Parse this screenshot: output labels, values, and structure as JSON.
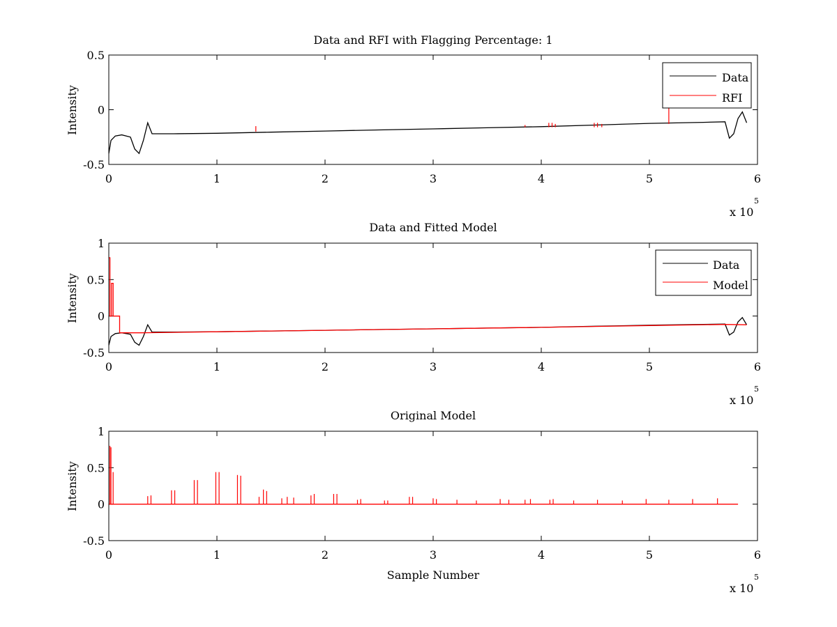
{
  "colors": {
    "data": "#000000",
    "rfi": "#ff0000",
    "axes": "#000000",
    "background": "#ffffff",
    "legend_border": "#000000"
  },
  "chart_data": [
    {
      "type": "line",
      "title": "Data and RFI with Flagging Percentage: 1",
      "xlabel": "",
      "ylabel": "Intensity",
      "xlim": [
        0,
        600000
      ],
      "ylim": [
        -0.5,
        0.5
      ],
      "x_ticks": [
        0,
        1,
        2,
        3,
        4,
        5,
        6
      ],
      "y_ticks": [
        "-0.5",
        "0",
        "0.5"
      ],
      "x_exponent_label": "x 10",
      "x_exponent": "5",
      "legend": {
        "position": "top-right",
        "entries": [
          "Data",
          "RFI"
        ]
      },
      "series": [
        {
          "name": "Data",
          "color": "#000000",
          "x": [
            0,
            2000,
            6000,
            12000,
            20000,
            24000,
            28000,
            32000,
            36000,
            40000,
            60000,
            100000,
            150000,
            200000,
            250000,
            300000,
            350000,
            400000,
            450000,
            500000,
            550000,
            570000,
            574000,
            578000,
            582000,
            586000,
            590000
          ],
          "y": [
            -0.4,
            -0.28,
            -0.24,
            -0.23,
            -0.25,
            -0.36,
            -0.4,
            -0.28,
            -0.12,
            -0.22,
            -0.22,
            -0.215,
            -0.205,
            -0.195,
            -0.185,
            -0.175,
            -0.165,
            -0.155,
            -0.14,
            -0.125,
            -0.115,
            -0.11,
            -0.26,
            -0.22,
            -0.08,
            -0.02,
            -0.12
          ]
        },
        {
          "name": "RFI",
          "color": "#ff0000",
          "spikes": [
            {
              "x": 136000,
              "base": -0.2,
              "height": -0.15
            },
            {
              "x": 385000,
              "base": -0.16,
              "height": -0.14
            },
            {
              "x": 407000,
              "base": -0.16,
              "height": -0.12
            },
            {
              "x": 410000,
              "base": -0.16,
              "height": -0.12
            },
            {
              "x": 413000,
              "base": -0.16,
              "height": -0.13
            },
            {
              "x": 449000,
              "base": -0.16,
              "height": -0.12
            },
            {
              "x": 452000,
              "base": -0.16,
              "height": -0.12
            },
            {
              "x": 456000,
              "base": -0.16,
              "height": -0.13
            },
            {
              "x": 518000,
              "base": -0.13,
              "height": 0.02
            }
          ]
        }
      ]
    },
    {
      "type": "line",
      "title": "Data and Fitted Model",
      "xlabel": "",
      "ylabel": "Intensity",
      "xlim": [
        0,
        600000
      ],
      "ylim": [
        -0.5,
        1
      ],
      "x_ticks": [
        0,
        1,
        2,
        3,
        4,
        5,
        6
      ],
      "y_ticks": [
        "-0.5",
        "0",
        "0.5",
        "1"
      ],
      "x_exponent_label": "x 10",
      "x_exponent": "5",
      "legend": {
        "position": "top-right",
        "entries": [
          "Data",
          "Model"
        ]
      },
      "series": [
        {
          "name": "Data",
          "color": "#000000",
          "x": [
            0,
            2000,
            6000,
            12000,
            20000,
            24000,
            28000,
            32000,
            36000,
            40000,
            60000,
            100000,
            150000,
            200000,
            250000,
            300000,
            350000,
            400000,
            450000,
            500000,
            550000,
            570000,
            574000,
            578000,
            582000,
            586000,
            590000
          ],
          "y": [
            -0.4,
            -0.28,
            -0.24,
            -0.23,
            -0.25,
            -0.36,
            -0.4,
            -0.28,
            -0.12,
            -0.22,
            -0.22,
            -0.215,
            -0.205,
            -0.195,
            -0.185,
            -0.175,
            -0.165,
            -0.155,
            -0.14,
            -0.125,
            -0.115,
            -0.11,
            -0.26,
            -0.22,
            -0.08,
            -0.02,
            -0.12
          ]
        },
        {
          "name": "Model",
          "color": "#ff0000",
          "x": [
            0,
            1000,
            1000,
            2500,
            2500,
            4000,
            4000,
            10000,
            10000,
            30000,
            100000,
            200000,
            300000,
            400000,
            500000,
            570000,
            590000
          ],
          "y": [
            0.8,
            0.8,
            0.0,
            0.0,
            0.45,
            0.45,
            0.0,
            0.0,
            -0.23,
            -0.23,
            -0.215,
            -0.195,
            -0.175,
            -0.155,
            -0.13,
            -0.115,
            -0.12
          ]
        }
      ]
    },
    {
      "type": "line",
      "title": "Original Model",
      "xlabel": "Sample Number",
      "ylabel": "Intensity",
      "xlim": [
        0,
        600000
      ],
      "ylim": [
        -0.5,
        1
      ],
      "x_ticks": [
        0,
        1,
        2,
        3,
        4,
        5,
        6
      ],
      "y_ticks": [
        "-0.5",
        "0",
        "0.5",
        "1"
      ],
      "x_exponent_label": "x 10",
      "x_exponent": "5",
      "series": [
        {
          "name": "Original Model",
          "color": "#ff0000",
          "baseline": 0,
          "x_end": 582000,
          "spikes": [
            {
              "x": 1000,
              "height": 0.8
            },
            {
              "x": 2000,
              "height": 0.78
            },
            {
              "x": 4000,
              "height": 0.44
            },
            {
              "x": 36000,
              "height": 0.11
            },
            {
              "x": 39000,
              "height": 0.12
            },
            {
              "x": 58000,
              "height": 0.19
            },
            {
              "x": 61000,
              "height": 0.19
            },
            {
              "x": 79000,
              "height": 0.33
            },
            {
              "x": 82000,
              "height": 0.33
            },
            {
              "x": 99000,
              "height": 0.44
            },
            {
              "x": 102000,
              "height": 0.44
            },
            {
              "x": 119000,
              "height": 0.4
            },
            {
              "x": 122000,
              "height": 0.39
            },
            {
              "x": 139000,
              "height": 0.1
            },
            {
              "x": 143000,
              "height": 0.2
            },
            {
              "x": 146000,
              "height": 0.18
            },
            {
              "x": 160000,
              "height": 0.08
            },
            {
              "x": 165000,
              "height": 0.1
            },
            {
              "x": 171000,
              "height": 0.09
            },
            {
              "x": 187000,
              "height": 0.12
            },
            {
              "x": 190000,
              "height": 0.14
            },
            {
              "x": 208000,
              "height": 0.14
            },
            {
              "x": 211000,
              "height": 0.14
            },
            {
              "x": 230000,
              "height": 0.06
            },
            {
              "x": 233000,
              "height": 0.07
            },
            {
              "x": 255000,
              "height": 0.05
            },
            {
              "x": 258000,
              "height": 0.05
            },
            {
              "x": 278000,
              "height": 0.1
            },
            {
              "x": 281000,
              "height": 0.1
            },
            {
              "x": 300000,
              "height": 0.08
            },
            {
              "x": 303000,
              "height": 0.07
            },
            {
              "x": 322000,
              "height": 0.06
            },
            {
              "x": 340000,
              "height": 0.05
            },
            {
              "x": 362000,
              "height": 0.07
            },
            {
              "x": 370000,
              "height": 0.06
            },
            {
              "x": 385000,
              "height": 0.06
            },
            {
              "x": 390000,
              "height": 0.07
            },
            {
              "x": 408000,
              "height": 0.06
            },
            {
              "x": 411000,
              "height": 0.07
            },
            {
              "x": 430000,
              "height": 0.05
            },
            {
              "x": 452000,
              "height": 0.06
            },
            {
              "x": 475000,
              "height": 0.05
            },
            {
              "x": 497000,
              "height": 0.07
            },
            {
              "x": 518000,
              "height": 0.06
            },
            {
              "x": 540000,
              "height": 0.07
            },
            {
              "x": 563000,
              "height": 0.08
            }
          ]
        }
      ]
    }
  ]
}
